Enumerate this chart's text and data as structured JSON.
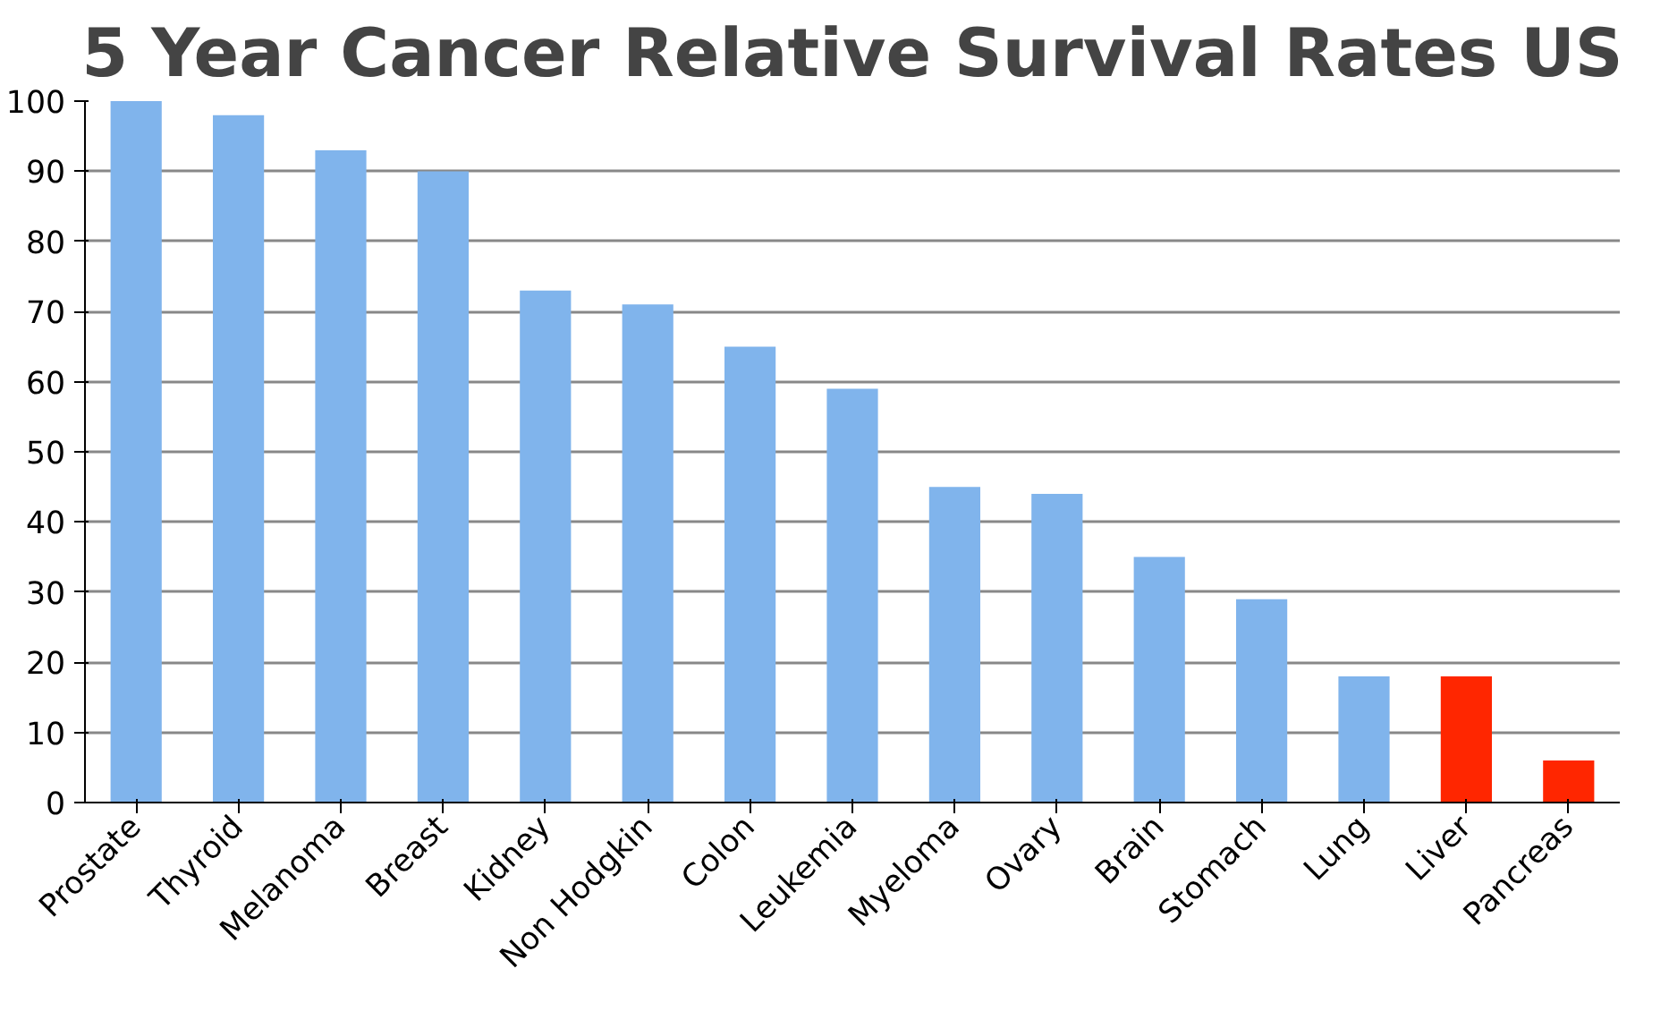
{
  "chart_data": {
    "type": "bar",
    "title": "5 Year Cancer Relative Survival Rates US",
    "categories": [
      "Prostate",
      "Thyroid",
      "Melanoma",
      "Breast",
      "Kidney",
      "Non Hodgkin",
      "Colon",
      "Leukemia",
      "Myeloma",
      "Ovary",
      "Brain",
      "Stomach",
      "Lung",
      "Liver",
      "Pancreas"
    ],
    "values": [
      100,
      98,
      93,
      90,
      73,
      71,
      65,
      59,
      45,
      44,
      35,
      29,
      18,
      18,
      6
    ],
    "colors": [
      "#80b4ec",
      "#80b4ec",
      "#80b4ec",
      "#80b4ec",
      "#80b4ec",
      "#80b4ec",
      "#80b4ec",
      "#80b4ec",
      "#80b4ec",
      "#80b4ec",
      "#80b4ec",
      "#80b4ec",
      "#80b4ec",
      "#ff2600",
      "#ff2600"
    ],
    "ylim": [
      0,
      100
    ],
    "yticks": [
      0,
      10,
      20,
      30,
      40,
      50,
      60,
      70,
      80,
      90,
      100
    ],
    "grid": "y"
  }
}
